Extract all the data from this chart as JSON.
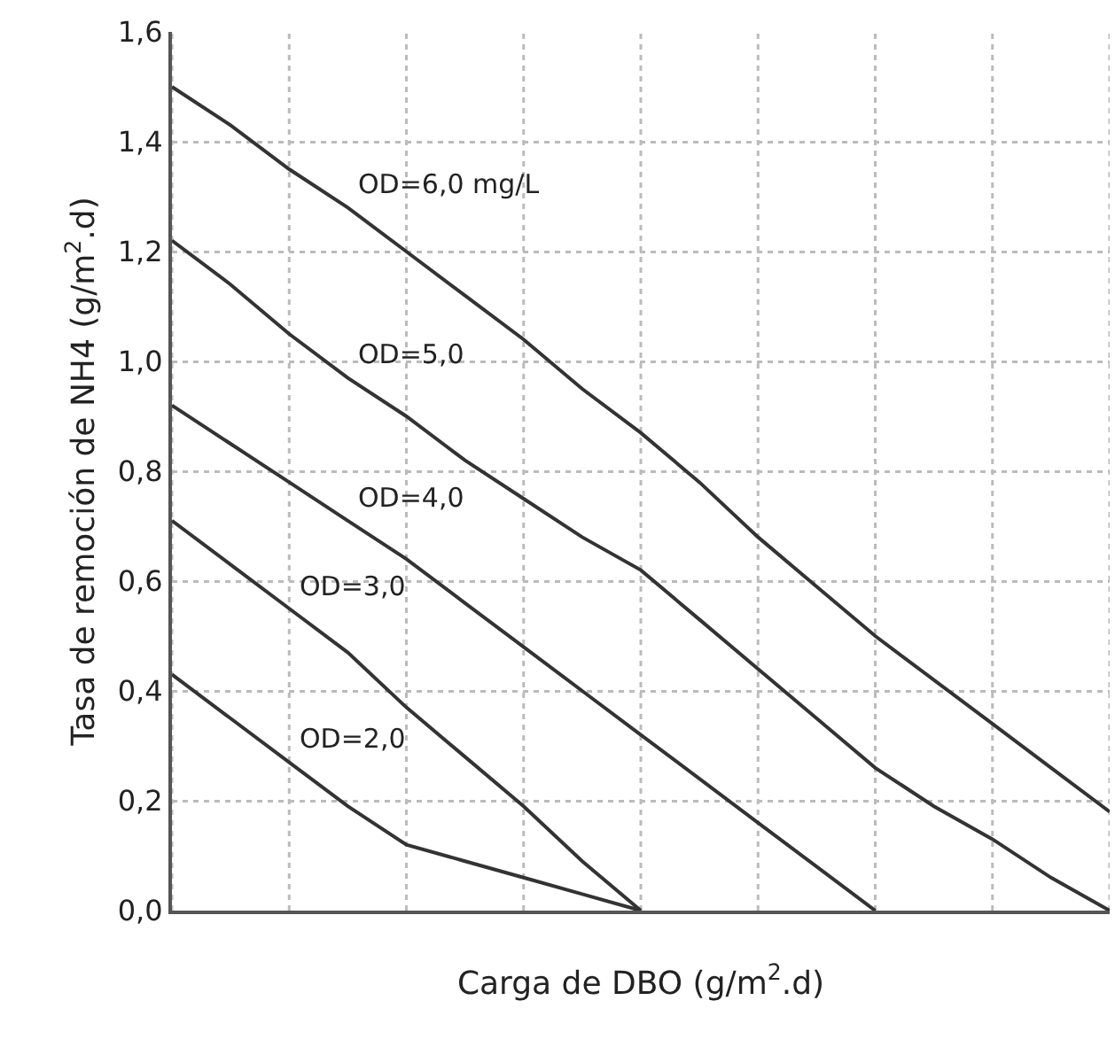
{
  "chart_data": {
    "type": "line",
    "xlabel": "Carga de DBO (g/m$^{2}$.d)",
    "ylabel": "Tasa de remoción de NH4 (g/m$^{2}$.d)",
    "categories": [
      null,
      null,
      null,
      null,
      null,
      null,
      null,
      null,
      null,
      null,
      null,
      null,
      null,
      null,
      null,
      null,
      null
    ],
    "series": [
      {
        "name": "OD=6,0 mg/L",
        "color": "#333333",
        "values": [
          1.5,
          1.43,
          1.35,
          1.28,
          1.2,
          1.12,
          1.04,
          0.95,
          0.87,
          0.78,
          0.68,
          0.59,
          0.5,
          0.42,
          0.34,
          0.26,
          0.18
        ]
      },
      {
        "name": "OD=5,0",
        "color": "#333333",
        "values": [
          1.22,
          1.14,
          1.05,
          0.97,
          0.9,
          0.82,
          0.75,
          0.68,
          0.62,
          0.53,
          0.44,
          0.35,
          0.26,
          0.19,
          0.13,
          0.06,
          0
        ]
      },
      {
        "name": "OD=4,0",
        "color": "#333333",
        "values": [
          0.92,
          0.85,
          0.78,
          0.71,
          0.64,
          0.56,
          0.48,
          0.4,
          0.32,
          0.24,
          0.16,
          0.08,
          0,
          null,
          null,
          null,
          null
        ]
      },
      {
        "name": "OD=3,0",
        "color": "#333333",
        "values": [
          0.71,
          0.63,
          0.55,
          0.47,
          0.37,
          0.28,
          0.19,
          0.09,
          0,
          null,
          null,
          null,
          null,
          null,
          null,
          null,
          null
        ]
      },
      {
        "name": "OD=2,0",
        "color": "#333333",
        "values": [
          0.43,
          0.35,
          0.27,
          0.19,
          0.12,
          0.09,
          0.06,
          0.03,
          0,
          null,
          null,
          null,
          null,
          null,
          null,
          null,
          null
        ]
      }
    ],
    "ylim": [
      0,
      1.6
    ],
    "yticks": [
      {
        "value": 0,
        "label": "0,0"
      },
      {
        "value": 0.2,
        "label": "0,2"
      },
      {
        "value": 0.4,
        "label": "0,4"
      },
      {
        "value": 0.6,
        "label": "0,6"
      },
      {
        "value": 0.8,
        "label": "0,8"
      },
      {
        "value": 1.0,
        "label": "1,0"
      },
      {
        "value": 1.2,
        "label": "1,2"
      },
      {
        "value": 1.4,
        "label": "1,4"
      },
      {
        "value": 1.6,
        "label": "1,6"
      }
    ],
    "grid": true,
    "legend": false,
    "marker": "none",
    "line_style": "solid",
    "tick_labels": "y"
  }
}
